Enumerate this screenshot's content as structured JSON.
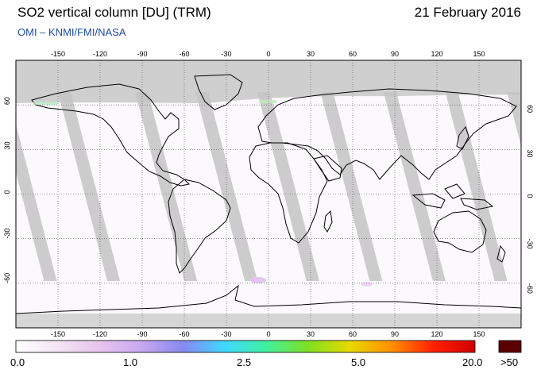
{
  "header": {
    "title": "SO2 vertical column [DU] (TRM)",
    "date": "21 February 2016",
    "subtitle": "OMI – KNMI/FMI/NASA"
  },
  "map": {
    "projection": "equirectangular",
    "lon_ticks": [
      "-150",
      "-120",
      "-90",
      "-60",
      "-30",
      "0",
      "30",
      "60",
      "90",
      "120",
      "150"
    ],
    "lat_ticks": [
      "60",
      "30",
      "0",
      "-30",
      "-60"
    ]
  },
  "colorbar": {
    "labels": [
      "0.0",
      "1.0",
      "2.5",
      "5.0",
      "20.0"
    ],
    "overflow_label": ">50",
    "overflow_color": "#5a0000",
    "stops": [
      "#ffffff",
      "#f4e4f4",
      "#e8c4ee",
      "#c8a8f0",
      "#8888f0",
      "#40d8ff",
      "#40f0a0",
      "#80e020",
      "#e8d800",
      "#ff9000",
      "#ff2000",
      "#d00000"
    ]
  }
}
